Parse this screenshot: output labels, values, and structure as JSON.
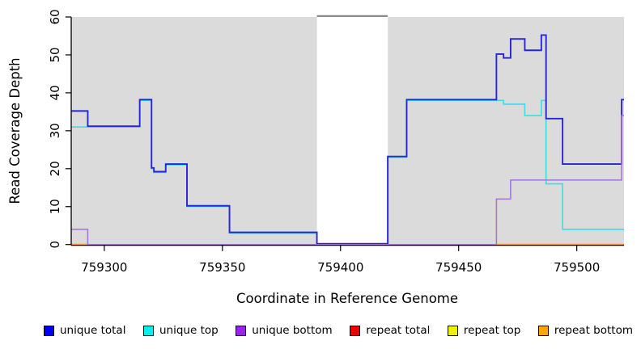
{
  "page": {
    "background_color": "#FFFFFF"
  },
  "chart_data": {
    "type": "line",
    "subtype": "step-coverage-plot",
    "title": "",
    "xlabel": "Coordinate in Reference Genome",
    "ylabel": "Read Coverage Depth",
    "xlim": [
      759286,
      759520
    ],
    "ylim": [
      0,
      60
    ],
    "x_ticks": [
      759300,
      759350,
      759400,
      759450,
      759500
    ],
    "y_ticks": [
      0,
      10,
      20,
      30,
      40,
      50,
      60
    ],
    "grid": false,
    "plot_bg_color": "#DBDBDB",
    "masked_gap_x": [
      759390,
      759420
    ],
    "gap_cap_color": "#8A8A8A",
    "axis_color": "#000000",
    "legend_position": "bottom",
    "legend": [
      {
        "label": "unique total",
        "color": "#0000F0"
      },
      {
        "label": "unique top",
        "color": "#00F0F0"
      },
      {
        "label": "unique bottom",
        "color": "#A020F0"
      },
      {
        "label": "repeat total",
        "color": "#F00000"
      },
      {
        "label": "repeat top",
        "color": "#F0F000"
      },
      {
        "label": "repeat bottom",
        "color": "#FFA500"
      }
    ],
    "series": [
      {
        "name": "repeat top",
        "line_color": "#F2F200",
        "line_width": 1.4,
        "step_points": [
          [
            759286,
            0
          ]
        ],
        "x_end": 759520,
        "note": "flat at 0, hidden beneath other zero lines"
      },
      {
        "name": "repeat total",
        "line_color": "#E25C75",
        "line_width": 1.4,
        "step_points": [
          [
            759286,
            0
          ]
        ],
        "x_end": 759520,
        "note": "flat at 0 across full range, visible 759293-759466 including masked gap"
      },
      {
        "name": "repeat bottom",
        "line_color": "#FF9E1B",
        "line_width": 1.8,
        "step_points": [
          [
            759286,
            0
          ]
        ],
        "x_end": 759520,
        "visible_segments": [
          [
            759286,
            759293
          ],
          [
            759466,
            759520
          ]
        ],
        "note": "flat at 0, visible at far left tip and right of 759466"
      },
      {
        "name": "unique top",
        "line_color": "#3DDDE6",
        "line_width": 1.6,
        "step_points": [
          [
            759286,
            31
          ],
          [
            759315,
            38
          ],
          [
            759320,
            20
          ],
          [
            759321,
            19
          ],
          [
            759326,
            21
          ],
          [
            759335,
            10
          ],
          [
            759353,
            3
          ],
          [
            759390,
            0
          ],
          [
            759420,
            23
          ],
          [
            759428,
            38
          ],
          [
            759469,
            37
          ],
          [
            759478,
            34
          ],
          [
            759485,
            38
          ],
          [
            759487,
            16
          ],
          [
            759494,
            4
          ]
        ],
        "x_end": 759520
      },
      {
        "name": "unique total",
        "line_color": "#2626D8",
        "line_width": 1.9,
        "step_points": [
          [
            759286,
            35
          ],
          [
            759293,
            31
          ],
          [
            759315,
            38
          ],
          [
            759320,
            20
          ],
          [
            759321,
            19
          ],
          [
            759326,
            21
          ],
          [
            759335,
            10
          ],
          [
            759353,
            3
          ],
          [
            759390,
            0
          ],
          [
            759420,
            23
          ],
          [
            759428,
            38
          ],
          [
            759466,
            50
          ],
          [
            759469,
            49
          ],
          [
            759472,
            54
          ],
          [
            759478,
            51
          ],
          [
            759485,
            55
          ],
          [
            759487,
            33
          ],
          [
            759494,
            21
          ],
          [
            759519,
            38
          ]
        ],
        "x_end": 759520
      },
      {
        "name": "unique bottom",
        "line_color": "#A96FD8",
        "line_width": 1.5,
        "step_points": [
          [
            759286,
            4
          ],
          [
            759293,
            0
          ],
          [
            759466,
            12
          ],
          [
            759472,
            17
          ],
          [
            759519,
            34
          ]
        ],
        "x_end": 759520
      }
    ]
  }
}
